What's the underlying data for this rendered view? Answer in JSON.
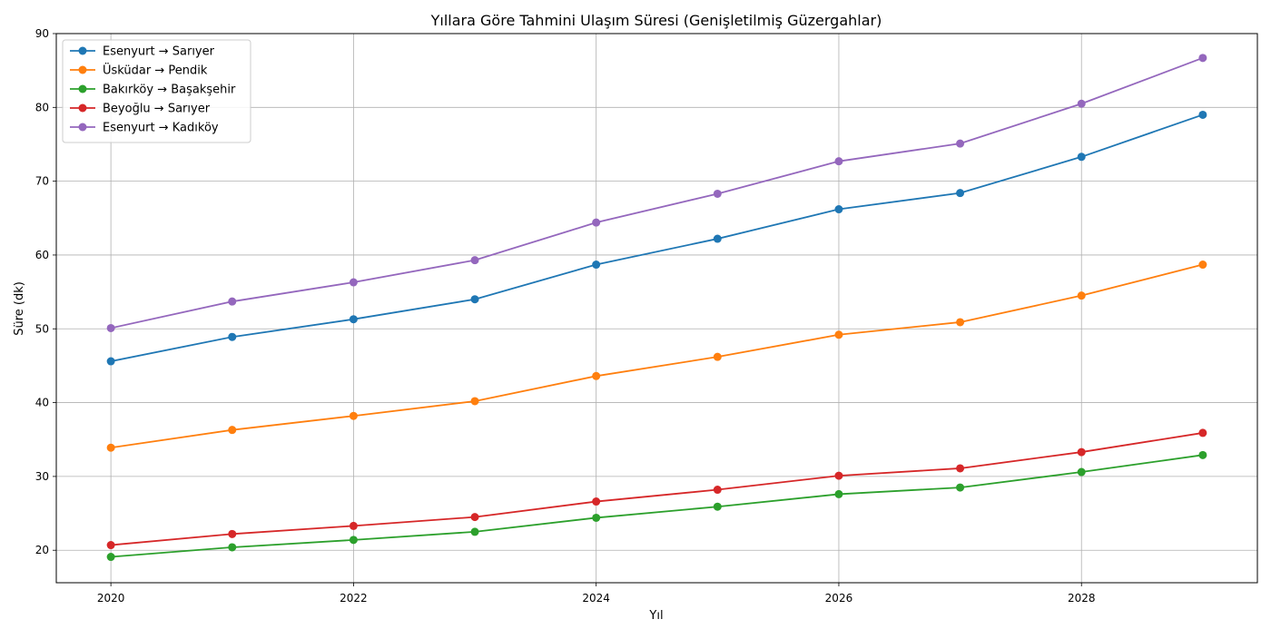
{
  "chart_data": {
    "type": "line",
    "title": "Yıllara Göre Tahmini Ulaşım Süresi (Genişletilmiş Güzergahlar)",
    "xlabel": "Yıl",
    "ylabel": "Süre (dk)",
    "x": [
      2020,
      2021,
      2022,
      2023,
      2024,
      2025,
      2026,
      2027,
      2028,
      2029
    ],
    "xticks": [
      "2020",
      "2022",
      "2024",
      "2026",
      "2028"
    ],
    "xlim": [
      2019.55,
      2029.45
    ],
    "yticks": [
      "20",
      "30",
      "40",
      "50",
      "60",
      "70",
      "80",
      "90"
    ],
    "ylim": [
      15.6,
      90
    ],
    "grid": true,
    "legend": "top-left",
    "marker": "circle",
    "series": [
      {
        "name": "Esenyurt → Sarıyer",
        "color": "#1f77b4",
        "values": [
          45.6,
          48.9,
          51.3,
          54.0,
          58.7,
          62.2,
          66.2,
          68.4,
          73.3,
          79.0
        ]
      },
      {
        "name": "Üsküdar → Pendik",
        "color": "#ff7f0e",
        "values": [
          33.9,
          36.3,
          38.2,
          40.2,
          43.6,
          46.2,
          49.2,
          50.9,
          54.5,
          58.7
        ]
      },
      {
        "name": "Bakırköy → Başakşehir",
        "color": "#2ca02c",
        "values": [
          19.1,
          20.4,
          21.4,
          22.5,
          24.4,
          25.9,
          27.6,
          28.5,
          30.6,
          32.9
        ]
      },
      {
        "name": "Beyoğlu → Sarıyer",
        "color": "#d62728",
        "values": [
          20.7,
          22.2,
          23.3,
          24.5,
          26.6,
          28.2,
          30.1,
          31.1,
          33.3,
          35.9
        ]
      },
      {
        "name": "Esenyurt → Kadıköy",
        "color": "#9467bd",
        "values": [
          50.1,
          53.7,
          56.3,
          59.3,
          64.4,
          68.3,
          72.7,
          75.1,
          80.5,
          86.7
        ]
      }
    ]
  }
}
